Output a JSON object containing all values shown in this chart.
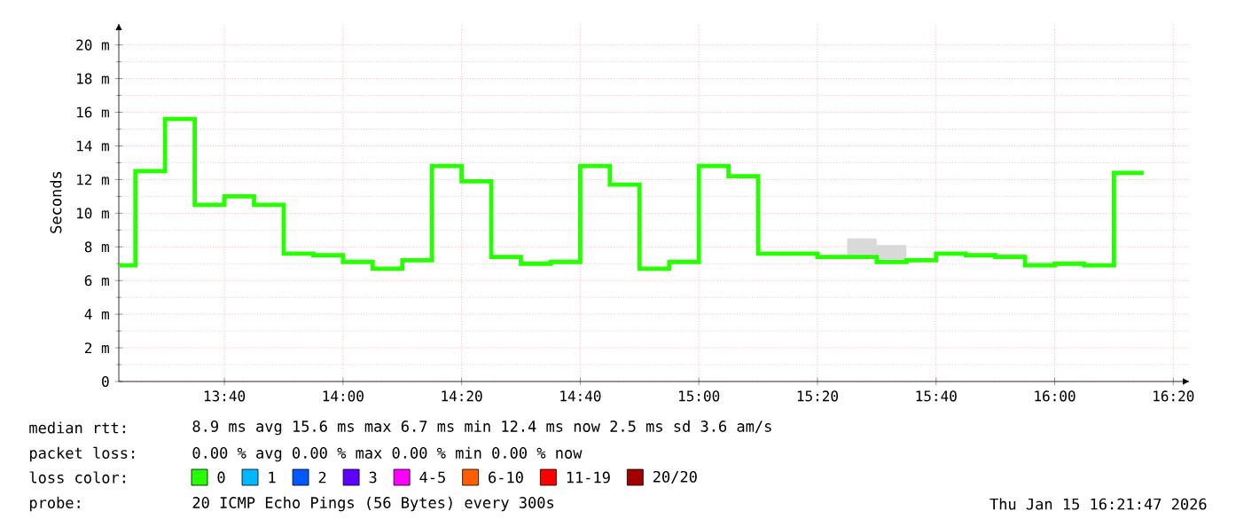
{
  "chart_data": {
    "type": "step",
    "ylabel": "Seconds",
    "legend_title": "loss color:",
    "legend": "bottom",
    "grid": true,
    "x": [
      13.37,
      13.4167,
      13.5,
      13.5833,
      13.6667,
      13.75,
      13.8333,
      13.9167,
      14,
      14.0833,
      14.1667,
      14.25,
      14.3333,
      14.4167,
      14.5,
      14.5833,
      14.6667,
      14.75,
      14.8333,
      14.9167,
      15,
      15.0833,
      15.1667,
      15.25,
      15.3333,
      15.4167,
      15.5,
      15.5833,
      15.6667,
      15.75,
      15.8333,
      15.9167,
      16,
      16.0833,
      16.1667,
      16.25
    ],
    "xlim": [
      13.37,
      16.38
    ],
    "xticks": [
      {
        "value": 13.6667,
        "label": "13:40"
      },
      {
        "value": 14,
        "label": "14:00"
      },
      {
        "value": 14.3333,
        "label": "14:20"
      },
      {
        "value": 14.6667,
        "label": "14:40"
      },
      {
        "value": 15,
        "label": "15:00"
      },
      {
        "value": 15.3333,
        "label": "15:20"
      },
      {
        "value": 15.6667,
        "label": "15:40"
      },
      {
        "value": 16,
        "label": "16:00"
      },
      {
        "value": 16.3333,
        "label": "16:20"
      }
    ],
    "ylim": [
      0,
      21.3
    ],
    "yticks": [
      0,
      {
        "value": 2,
        "label": "2 m"
      },
      {
        "value": 4,
        "label": "4 m"
      },
      {
        "value": 6,
        "label": "6 m"
      },
      {
        "value": 8,
        "label": "8 m"
      },
      {
        "value": 10,
        "label": "10 m"
      },
      {
        "value": 12,
        "label": "12 m"
      },
      {
        "value": 14,
        "label": "14 m"
      },
      {
        "value": 16,
        "label": "16 m"
      },
      {
        "value": 18,
        "label": "18 m"
      },
      {
        "value": 20,
        "label": "20 m"
      }
    ],
    "series": [
      {
        "name": "0",
        "color": "#26ff00",
        "values": [
          6.9,
          6.9,
          12.5,
          15.6,
          10.5,
          11.0,
          10.5,
          7.6,
          7.5,
          7.1,
          6.7,
          7.2,
          12.8,
          11.9,
          7.4,
          7.0,
          7.1,
          12.8,
          11.7,
          6.7,
          7.1,
          12.8,
          12.2,
          7.6,
          7.6,
          7.4,
          7.4,
          7.1,
          7.2,
          7.6,
          7.5,
          7.4,
          6.9,
          7.0,
          6.9,
          12.4
        ],
        "lower": [
          6.9,
          6.9,
          12.5,
          15.6,
          10.4,
          11.0,
          10.5,
          7.6,
          7.5,
          7.1,
          6.7,
          7.1,
          12.8,
          11.9,
          7.4,
          7.0,
          7.1,
          12.8,
          11.7,
          6.7,
          7.1,
          12.8,
          12.2,
          7.6,
          7.6,
          7.4,
          7.4,
          7.1,
          7.2,
          7.6,
          7.5,
          7.4,
          6.9,
          7.0,
          6.9,
          12.3
        ],
        "upper": [
          6.9,
          6.9,
          12.5,
          15.6,
          10.5,
          11.0,
          10.5,
          7.6,
          7.5,
          7.3,
          6.7,
          7.2,
          12.8,
          11.9,
          7.5,
          7.0,
          7.3,
          12.8,
          11.7,
          6.7,
          7.3,
          12.8,
          12.2,
          7.6,
          7.6,
          7.4,
          8.5,
          8.1,
          7.2,
          7.6,
          7.5,
          7.6,
          7.1,
          7.0,
          6.9,
          12.4
        ]
      },
      {
        "name": "1",
        "color": "#00b8ff",
        "values": [
          null,
          null,
          null,
          null,
          null,
          null,
          null,
          null,
          null,
          null,
          null,
          null,
          null,
          null,
          null,
          null,
          null,
          null,
          null,
          null,
          null,
          null,
          null,
          null,
          null,
          null,
          null,
          null,
          null,
          null,
          null,
          null,
          null,
          null,
          null,
          null
        ]
      },
      {
        "name": "2",
        "color": "#0059ff",
        "values": [
          null,
          null,
          null,
          null,
          null,
          null,
          null,
          null,
          null,
          null,
          null,
          null,
          null,
          null,
          null,
          null,
          null,
          null,
          null,
          null,
          null,
          null,
          null,
          null,
          null,
          null,
          null,
          null,
          null,
          null,
          null,
          null,
          null,
          null,
          null,
          null
        ]
      },
      {
        "name": "3",
        "color": "#5e00ff",
        "values": [
          null,
          null,
          null,
          null,
          null,
          null,
          null,
          null,
          null,
          null,
          null,
          null,
          null,
          null,
          null,
          null,
          null,
          null,
          null,
          null,
          null,
          null,
          null,
          null,
          null,
          null,
          null,
          null,
          null,
          null,
          null,
          null,
          null,
          null,
          null,
          null
        ]
      },
      {
        "name": "4-5",
        "color": "#ff00ff",
        "values": [
          null,
          null,
          null,
          null,
          null,
          null,
          null,
          null,
          null,
          null,
          null,
          null,
          null,
          null,
          null,
          null,
          null,
          null,
          null,
          null,
          null,
          null,
          null,
          null,
          null,
          null,
          null,
          null,
          null,
          null,
          null,
          null,
          null,
          null,
          null,
          null
        ]
      },
      {
        "name": "6-10",
        "color": "#ff5e00",
        "values": [
          null,
          null,
          null,
          null,
          null,
          null,
          null,
          null,
          null,
          null,
          null,
          null,
          null,
          null,
          null,
          null,
          null,
          null,
          null,
          null,
          null,
          null,
          null,
          null,
          null,
          null,
          null,
          null,
          null,
          null,
          null,
          null,
          null,
          null,
          null,
          null
        ]
      },
      {
        "name": "11-19",
        "color": "#ff0000",
        "values": [
          null,
          null,
          null,
          null,
          null,
          null,
          null,
          null,
          null,
          null,
          null,
          null,
          null,
          null,
          null,
          null,
          null,
          null,
          null,
          null,
          null,
          null,
          null,
          null,
          null,
          null,
          null,
          null,
          null,
          null,
          null,
          null,
          null,
          null,
          null,
          null
        ]
      },
      {
        "name": "20/20",
        "color": "#a10000",
        "values": [
          null,
          null,
          null,
          null,
          null,
          null,
          null,
          null,
          null,
          null,
          null,
          null,
          null,
          null,
          null,
          null,
          null,
          null,
          null,
          null,
          null,
          null,
          null,
          null,
          null,
          null,
          null,
          null,
          null,
          null,
          null,
          null,
          null,
          null,
          null,
          null
        ]
      }
    ],
    "annotations": [
      "median rtt:",
      "8.9 ms avg   15.6 ms max   6.7 ms min   12.4 ms now   2.5 ms sd   3.6    am/s",
      "packet loss:",
      "0.00 % avg   0.00 % max   0.00 % min   0.00 % now",
      "probe:",
      "20 ICMP Echo Pings (56 Bytes) every 300s",
      "Thu Jan 15 16:21:47 2026"
    ]
  }
}
